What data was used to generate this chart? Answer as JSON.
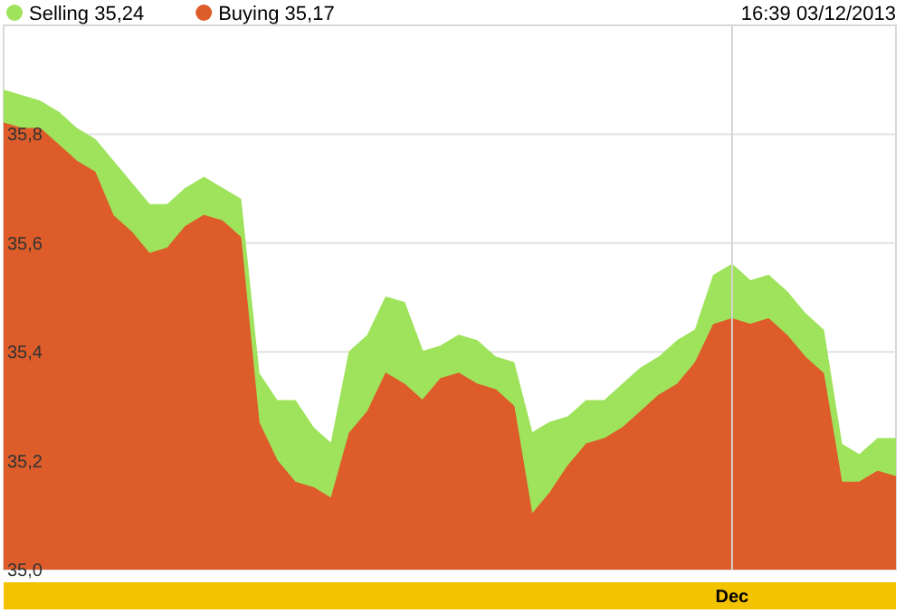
{
  "chart_data": {
    "type": "area",
    "subtitle": "16:39 03/12/2013",
    "categories": [
      null,
      null,
      null,
      null,
      null,
      null,
      null,
      null,
      null,
      null,
      null,
      null,
      null,
      null,
      null,
      null,
      null,
      null,
      null,
      null,
      null,
      null,
      null,
      null,
      null,
      null,
      null,
      null,
      null,
      null,
      null,
      null,
      null,
      null,
      null,
      null,
      null,
      null,
      null,
      null,
      "Dec",
      null,
      null,
      null,
      null,
      null,
      null,
      null,
      null,
      null
    ],
    "series": [
      {
        "name": "Selling 35,24",
        "color": "#9fe35c",
        "values": [
          35.88,
          35.87,
          35.86,
          35.84,
          35.81,
          35.79,
          35.75,
          35.71,
          35.67,
          35.67,
          35.7,
          35.72,
          35.7,
          35.68,
          35.36,
          35.31,
          35.31,
          35.26,
          35.23,
          35.4,
          35.43,
          35.5,
          35.49,
          35.4,
          35.41,
          35.43,
          35.42,
          35.39,
          35.38,
          35.25,
          35.27,
          35.28,
          35.31,
          35.31,
          35.34,
          35.37,
          35.39,
          35.42,
          35.44,
          35.54,
          35.56,
          35.53,
          35.54,
          35.51,
          35.47,
          35.44,
          35.23,
          35.21,
          35.24,
          35.24
        ]
      },
      {
        "name": "Buying 35,17",
        "color": "#dd5c2a",
        "values": [
          35.82,
          35.81,
          35.81,
          35.78,
          35.75,
          35.73,
          35.65,
          35.62,
          35.58,
          35.59,
          35.63,
          35.65,
          35.64,
          35.61,
          35.27,
          35.2,
          35.16,
          35.15,
          35.13,
          35.25,
          35.29,
          35.36,
          35.34,
          35.31,
          35.35,
          35.36,
          35.34,
          35.33,
          35.3,
          35.1,
          35.14,
          35.19,
          35.23,
          35.24,
          35.26,
          35.29,
          35.32,
          35.34,
          35.38,
          35.45,
          35.46,
          35.45,
          35.46,
          35.43,
          35.39,
          35.36,
          35.16,
          35.16,
          35.18,
          35.17
        ]
      }
    ],
    "ylim": [
      35.0,
      36.0
    ],
    "yticks": [
      {
        "value": 35.0,
        "label": "35,0"
      },
      {
        "value": 35.2,
        "label": "35,2"
      },
      {
        "value": 35.4,
        "label": "35,4"
      },
      {
        "value": 35.6,
        "label": "35,6"
      },
      {
        "value": 35.8,
        "label": "35,8"
      }
    ],
    "grid": true,
    "legend": "top left"
  }
}
